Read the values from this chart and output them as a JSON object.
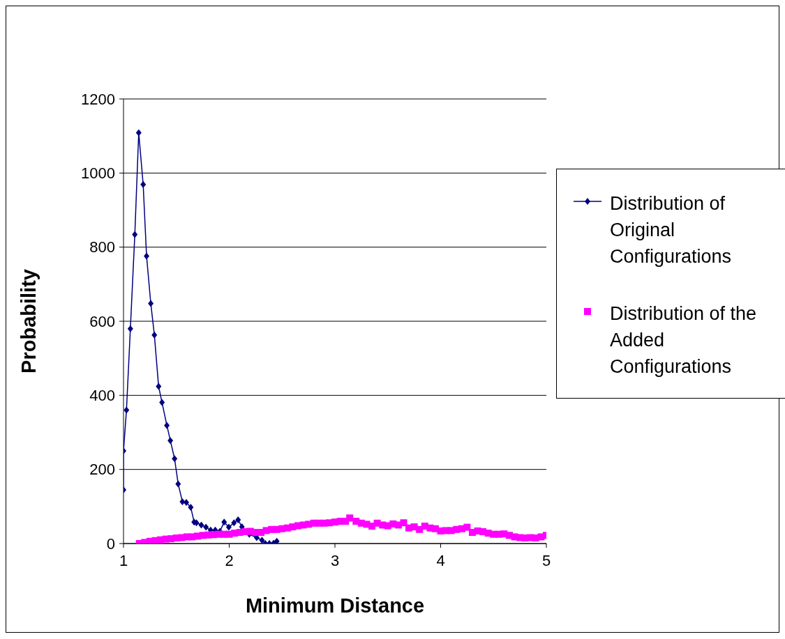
{
  "chart_data": {
    "type": "line",
    "xlabel": "Minimum Distance",
    "ylabel": "Probability",
    "xlim": [
      1,
      5
    ],
    "xticks": [
      1,
      2,
      3,
      4,
      5
    ],
    "ylim": [
      0,
      1200
    ],
    "yticks": [
      0,
      200,
      400,
      600,
      800,
      1000,
      1200
    ],
    "grid": "y",
    "legend": "right",
    "series": [
      {
        "name": "Distribution of Original Configurations",
        "color": "#000080",
        "marker": "diamond",
        "x": [
          1.0,
          1.0,
          1.028,
          1.065,
          1.107,
          1.144,
          1.186,
          1.218,
          1.258,
          1.292,
          1.332,
          1.364,
          1.41,
          1.443,
          1.483,
          1.517,
          1.557,
          1.594,
          1.636,
          1.668,
          1.69,
          1.736,
          1.78,
          1.824,
          1.868,
          1.912,
          1.952,
          1.996,
          2.045,
          2.084,
          2.12,
          2.19,
          2.26,
          2.31,
          2.342,
          2.38,
          2.42,
          2.45
        ],
        "values": [
          145,
          250,
          360,
          580,
          834,
          1109,
          969,
          776,
          648,
          563,
          424,
          381,
          319,
          278,
          229,
          161,
          113,
          111,
          98,
          58,
          56,
          50,
          44,
          36,
          36,
          33,
          58,
          44,
          56,
          64,
          45,
          25,
          16,
          9,
          0,
          0,
          1,
          6
        ]
      },
      {
        "name": "Distribution of the Added Configurations",
        "type": "scatter",
        "color": "#ff00ff",
        "marker": "square",
        "x": [
          1.15,
          1.2,
          1.25,
          1.3,
          1.35,
          1.4,
          1.45,
          1.5,
          1.55,
          1.6,
          1.65,
          1.7,
          1.75,
          1.8,
          1.85,
          1.9,
          1.95,
          2.0,
          2.05,
          2.1,
          2.15,
          2.2,
          2.25,
          2.3,
          2.35,
          2.4,
          2.45,
          2.5,
          2.55,
          2.6,
          2.65,
          2.7,
          2.75,
          2.8,
          2.85,
          2.9,
          2.95,
          3.0,
          3.05,
          3.1,
          3.14,
          3.2,
          3.25,
          3.3,
          3.35,
          3.4,
          3.45,
          3.5,
          3.55,
          3.6,
          3.65,
          3.7,
          3.75,
          3.8,
          3.85,
          3.9,
          3.95,
          4.0,
          4.05,
          4.1,
          4.15,
          4.2,
          4.25,
          4.3,
          4.35,
          4.4,
          4.45,
          4.5,
          4.55,
          4.6,
          4.65,
          4.7,
          4.75,
          4.8,
          4.85,
          4.9,
          4.95,
          5.0
        ],
        "values": [
          0,
          3,
          6,
          8,
          10,
          12,
          13,
          15,
          16,
          18,
          18,
          20,
          22,
          23,
          24,
          25,
          25,
          25,
          28,
          30,
          32,
          33,
          30,
          30,
          35,
          38,
          38,
          40,
          42,
          45,
          48,
          50,
          52,
          55,
          55,
          55,
          56,
          58,
          60,
          60,
          69,
          60,
          55,
          52,
          47,
          55,
          50,
          48,
          53,
          50,
          56,
          42,
          45,
          38,
          47,
          42,
          40,
          34,
          35,
          35,
          38,
          40,
          44,
          30,
          34,
          32,
          28,
          25,
          25,
          26,
          22,
          18,
          16,
          15,
          16,
          15,
          18,
          22
        ]
      }
    ]
  }
}
